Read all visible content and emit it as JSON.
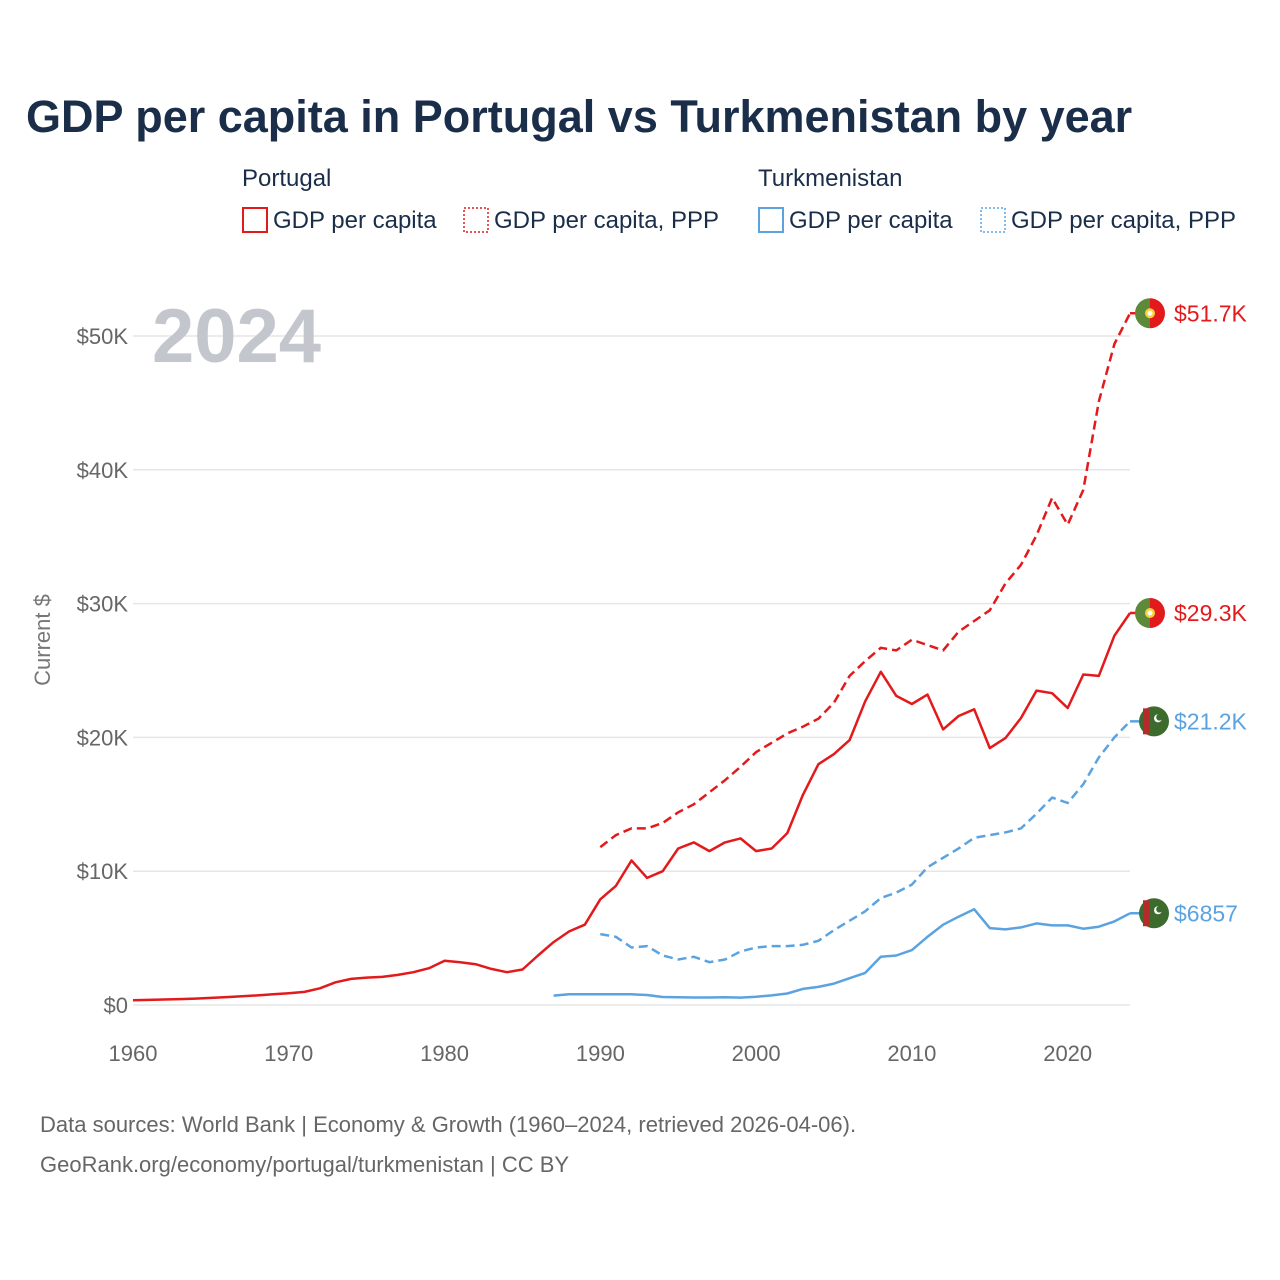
{
  "title": "GDP per capita in Portugal vs Turkmenistan by year",
  "year_label": "2024",
  "source_line1": "Data sources: World Bank | Economy & Growth (1960–2024, retrieved 2026-04-06).",
  "source_line2": "GeoRank.org/economy/portugal/turkmenistan | CC BY",
  "legend": {
    "groups": [
      {
        "country": "Portugal",
        "items": [
          "GDP per capita",
          "GDP per capita, PPP"
        ]
      },
      {
        "country": "Turkmenistan",
        "items": [
          "GDP per capita",
          "GDP per capita, PPP"
        ]
      }
    ]
  },
  "colors": {
    "portugal": "#e31a1c",
    "turkmenistan": "#5ba3e0"
  },
  "chart_data": {
    "type": "line",
    "title": "GDP per capita in Portugal vs Turkmenistan by year",
    "xlabel": "",
    "ylabel": "Current $",
    "xlim": [
      1960,
      2024
    ],
    "ylim": [
      0,
      53000
    ],
    "x_ticks": [
      1960,
      1970,
      1980,
      1990,
      2000,
      2010,
      2020
    ],
    "y_ticks": [
      0,
      10000,
      20000,
      30000,
      40000,
      50000
    ],
    "y_tick_labels": [
      "$0",
      "$10K",
      "$20K",
      "$30K",
      "$40K",
      "$50K"
    ],
    "grid": true,
    "series": [
      {
        "name": "Portugal GDP per capita",
        "country": "Portugal",
        "style": "solid",
        "end_label": "$29.3K",
        "x": [
          1960,
          1961,
          1962,
          1963,
          1964,
          1965,
          1966,
          1967,
          1968,
          1969,
          1970,
          1971,
          1972,
          1973,
          1974,
          1975,
          1976,
          1977,
          1978,
          1979,
          1980,
          1981,
          1982,
          1983,
          1984,
          1985,
          1986,
          1987,
          1988,
          1989,
          1990,
          1991,
          1992,
          1993,
          1994,
          1995,
          1996,
          1997,
          1998,
          1999,
          2000,
          2001,
          2002,
          2003,
          2004,
          2005,
          2006,
          2007,
          2008,
          2009,
          2010,
          2011,
          2012,
          2013,
          2014,
          2015,
          2016,
          2017,
          2018,
          2019,
          2020,
          2021,
          2022,
          2023,
          2024
        ],
        "values": [
          360,
          380,
          410,
          440,
          480,
          530,
          590,
          650,
          720,
          800,
          880,
          980,
          1250,
          1700,
          1950,
          2050,
          2100,
          2250,
          2450,
          2750,
          3300,
          3200,
          3050,
          2700,
          2450,
          2650,
          3700,
          4700,
          5500,
          6000,
          7900,
          8900,
          10800,
          9500,
          10000,
          11700,
          12150,
          11500,
          12150,
          12450,
          11500,
          11700,
          12850,
          15700,
          18000,
          18750,
          19800,
          22700,
          24900,
          23100,
          22500,
          23200,
          20600,
          21600,
          22100,
          19200,
          19950,
          21450,
          23500,
          23300,
          22200,
          24700,
          24600,
          27600,
          29300
        ]
      },
      {
        "name": "Portugal GDP per capita, PPP",
        "country": "Portugal",
        "style": "dashed",
        "end_label": "$51.7K",
        "x": [
          1990,
          1991,
          1992,
          1993,
          1994,
          1995,
          1996,
          1997,
          1998,
          1999,
          2000,
          2001,
          2002,
          2003,
          2004,
          2005,
          2006,
          2007,
          2008,
          2009,
          2010,
          2011,
          2012,
          2013,
          2014,
          2015,
          2016,
          2017,
          2018,
          2019,
          2020,
          2021,
          2022,
          2023,
          2024
        ],
        "values": [
          11800,
          12700,
          13200,
          13200,
          13600,
          14400,
          15000,
          15900,
          16800,
          17800,
          18900,
          19600,
          20300,
          20800,
          21400,
          22600,
          24600,
          25700,
          26700,
          26500,
          27300,
          26900,
          26500,
          27900,
          28700,
          29500,
          31500,
          32900,
          35100,
          37900,
          35900,
          38500,
          45100,
          49400,
          51700
        ]
      },
      {
        "name": "Turkmenistan GDP per capita",
        "country": "Turkmenistan",
        "style": "solid",
        "end_label": "$6857",
        "x": [
          1987,
          1988,
          1989,
          1990,
          1991,
          1992,
          1993,
          1994,
          1995,
          1996,
          1997,
          1998,
          1999,
          2000,
          2001,
          2002,
          2003,
          2004,
          2005,
          2006,
          2007,
          2008,
          2009,
          2010,
          2011,
          2012,
          2013,
          2014,
          2015,
          2016,
          2017,
          2018,
          2019,
          2020,
          2021,
          2022,
          2023,
          2024
        ],
        "values": [
          700,
          800,
          800,
          800,
          800,
          800,
          750,
          600,
          580,
          560,
          560,
          580,
          550,
          620,
          720,
          860,
          1200,
          1350,
          1600,
          2000,
          2400,
          3600,
          3700,
          4100,
          5100,
          6000,
          6600,
          7150,
          5750,
          5650,
          5800,
          6100,
          5950,
          5950,
          5700,
          5850,
          6250,
          6857
        ]
      },
      {
        "name": "Turkmenistan GDP per capita, PPP",
        "country": "Turkmenistan",
        "style": "dashed",
        "end_label": "$21.2K",
        "x": [
          1990,
          1991,
          1992,
          1993,
          1994,
          1995,
          1996,
          1997,
          1998,
          1999,
          2000,
          2001,
          2002,
          2003,
          2004,
          2005,
          2006,
          2007,
          2008,
          2009,
          2010,
          2011,
          2012,
          2013,
          2014,
          2015,
          2016,
          2017,
          2018,
          2019,
          2020,
          2021,
          2022,
          2023,
          2024
        ],
        "values": [
          5300,
          5100,
          4300,
          4400,
          3700,
          3400,
          3600,
          3200,
          3400,
          4000,
          4300,
          4400,
          4400,
          4500,
          4800,
          5600,
          6300,
          7000,
          8000,
          8400,
          9000,
          10300,
          11000,
          11700,
          12500,
          12700,
          12900,
          13200,
          14300,
          15500,
          15100,
          16500,
          18500,
          20000,
          21200
        ]
      }
    ]
  }
}
